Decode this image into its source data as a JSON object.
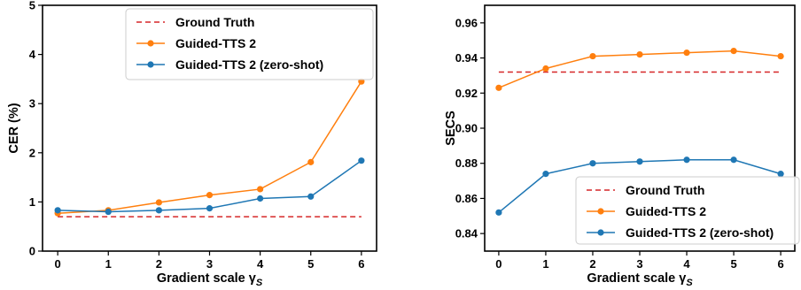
{
  "colors": {
    "ground_truth": "#d62728",
    "guided": "#ff7f0e",
    "zero_shot": "#1f77b4",
    "axis": "#000000",
    "legend_border": "#cccccc"
  },
  "chart_data": [
    {
      "type": "line",
      "xlabel": "Gradient scale γ",
      "xlabel_sub": "S",
      "ylabel": "CER (%)",
      "x": [
        0,
        1,
        2,
        3,
        4,
        5,
        6
      ],
      "xlim": [
        -0.3,
        6.3
      ],
      "ylim": [
        0,
        5
      ],
      "xticks": [
        "0",
        "1",
        "2",
        "3",
        "4",
        "5",
        "6"
      ],
      "yticks": [
        0,
        1,
        2,
        3,
        4,
        5
      ],
      "ytick_labels": [
        "0",
        "1",
        "2",
        "3",
        "4",
        "5"
      ],
      "legend_position": "top-right",
      "series": [
        {
          "name": "Ground Truth",
          "style": "dashed",
          "color": "#d62728",
          "values": [
            0.7,
            0.7,
            0.7,
            0.7,
            0.7,
            0.7,
            0.7
          ]
        },
        {
          "name": "Guided-TTS 2",
          "style": "line-marker",
          "color": "#ff7f0e",
          "values": [
            0.77,
            0.83,
            0.99,
            1.14,
            1.26,
            1.81,
            3.45
          ]
        },
        {
          "name": "Guided-TTS 2 (zero-shot)",
          "style": "line-marker",
          "color": "#1f77b4",
          "values": [
            0.83,
            0.8,
            0.83,
            0.87,
            1.07,
            1.11,
            1.84
          ]
        }
      ]
    },
    {
      "type": "line",
      "xlabel": "Gradient scale γ",
      "xlabel_sub": "S",
      "ylabel": "SECS",
      "x": [
        0,
        1,
        2,
        3,
        4,
        5,
        6
      ],
      "xlim": [
        -0.3,
        6.3
      ],
      "ylim": [
        0.83,
        0.97
      ],
      "xticks": [
        "0",
        "1",
        "2",
        "3",
        "4",
        "5",
        "6"
      ],
      "yticks": [
        0.84,
        0.86,
        0.88,
        0.9,
        0.92,
        0.94,
        0.96
      ],
      "ytick_labels": [
        "0.84",
        "0.86",
        "0.88",
        "0.90",
        "0.92",
        "0.94",
        "0.96"
      ],
      "legend_position": "bottom-right",
      "series": [
        {
          "name": "Ground Truth",
          "style": "dashed",
          "color": "#d62728",
          "values": [
            0.932,
            0.932,
            0.932,
            0.932,
            0.932,
            0.932,
            0.932
          ]
        },
        {
          "name": "Guided-TTS 2",
          "style": "line-marker",
          "color": "#ff7f0e",
          "values": [
            0.923,
            0.934,
            0.941,
            0.942,
            0.943,
            0.944,
            0.941
          ]
        },
        {
          "name": "Guided-TTS 2 (zero-shot)",
          "style": "line-marker",
          "color": "#1f77b4",
          "values": [
            0.852,
            0.874,
            0.88,
            0.881,
            0.882,
            0.882,
            0.874
          ]
        }
      ]
    }
  ]
}
